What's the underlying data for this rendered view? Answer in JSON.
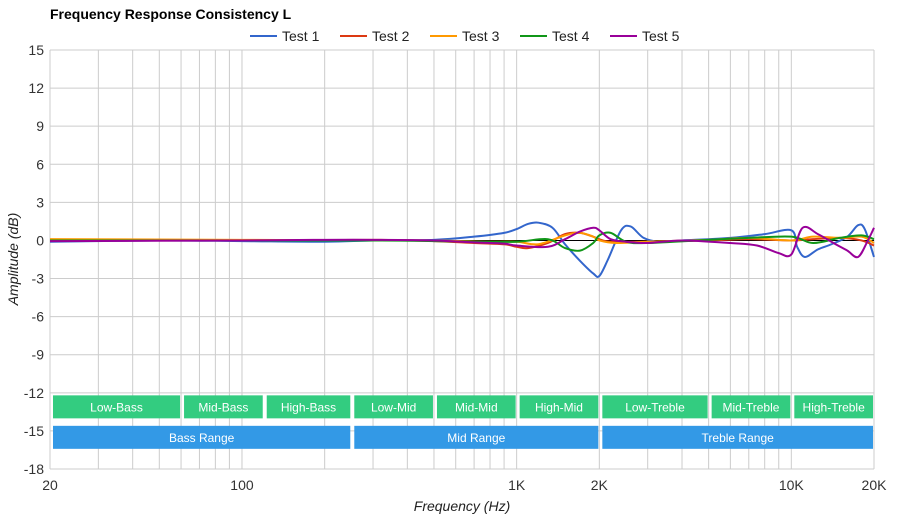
{
  "chart_data": {
    "type": "line",
    "title": "Frequency Response Consistency L",
    "xlabel": "Frequency (Hz)",
    "ylabel": "Amplitude (dB)",
    "x_scale": "log",
    "xlim": [
      20,
      20000
    ],
    "ylim": [
      -18,
      15
    ],
    "x_ticks": [
      {
        "value": 20,
        "label": "20"
      },
      {
        "value": 100,
        "label": "100"
      },
      {
        "value": 1000,
        "label": "1K"
      },
      {
        "value": 2000,
        "label": "2K"
      },
      {
        "value": 10000,
        "label": "10K"
      },
      {
        "value": 20000,
        "label": "20K"
      }
    ],
    "y_ticks": [
      {
        "value": 15,
        "label": "15"
      },
      {
        "value": 12,
        "label": "12"
      },
      {
        "value": 9,
        "label": "9"
      },
      {
        "value": 6,
        "label": "6"
      },
      {
        "value": 3,
        "label": "3"
      },
      {
        "value": 0,
        "label": "0"
      },
      {
        "value": -3,
        "label": "-3"
      },
      {
        "value": -6,
        "label": "-6"
      },
      {
        "value": -9,
        "label": "-9"
      },
      {
        "value": -12,
        "label": "-12"
      },
      {
        "value": -15,
        "label": "-15"
      },
      {
        "value": -18,
        "label": "-18"
      }
    ],
    "grid": true,
    "legend_position": "top-center",
    "series": [
      {
        "name": "Test 1",
        "color": "#3366cc",
        "points": [
          [
            20,
            -0.1
          ],
          [
            50,
            0
          ],
          [
            100,
            -0.05
          ],
          [
            200,
            -0.1
          ],
          [
            300,
            0
          ],
          [
            500,
            0.05
          ],
          [
            700,
            0.3
          ],
          [
            900,
            0.6
          ],
          [
            1000,
            0.9
          ],
          [
            1100,
            1.3
          ],
          [
            1200,
            1.4
          ],
          [
            1350,
            1.0
          ],
          [
            1500,
            -0.3
          ],
          [
            1700,
            -1.6
          ],
          [
            1900,
            -2.6
          ],
          [
            2000,
            -2.8
          ],
          [
            2150,
            -1.5
          ],
          [
            2400,
            0.8
          ],
          [
            2600,
            1.1
          ],
          [
            2900,
            0.2
          ],
          [
            3300,
            -0.1
          ],
          [
            4000,
            0
          ],
          [
            6000,
            0.2
          ],
          [
            8000,
            0.5
          ],
          [
            10000,
            0.8
          ],
          [
            10500,
            -0.5
          ],
          [
            11200,
            -1.3
          ],
          [
            12500,
            -0.7
          ],
          [
            14000,
            -0.3
          ],
          [
            16000,
            0.3
          ],
          [
            17500,
            1.2
          ],
          [
            18500,
            0.9
          ],
          [
            20000,
            -1.3
          ]
        ]
      },
      {
        "name": "Test 2",
        "color": "#dc3912",
        "points": [
          [
            20,
            0
          ],
          [
            100,
            0
          ],
          [
            300,
            0.05
          ],
          [
            500,
            -0.05
          ],
          [
            700,
            -0.2
          ],
          [
            900,
            -0.3
          ],
          [
            1000,
            -0.5
          ],
          [
            1100,
            -0.6
          ],
          [
            1300,
            -0.2
          ],
          [
            1500,
            0.5
          ],
          [
            1700,
            0.6
          ],
          [
            1900,
            0.3
          ],
          [
            2000,
            0.1
          ],
          [
            2200,
            -0.1
          ],
          [
            3000,
            -0.1
          ],
          [
            5000,
            0
          ],
          [
            7000,
            0.1
          ],
          [
            10000,
            0
          ],
          [
            12000,
            0.1
          ],
          [
            15000,
            0.2
          ],
          [
            18000,
            0
          ],
          [
            20000,
            -0.4
          ]
        ]
      },
      {
        "name": "Test 3",
        "color": "#ff9900",
        "points": [
          [
            20,
            0.1
          ],
          [
            100,
            0.05
          ],
          [
            300,
            0
          ],
          [
            500,
            0
          ],
          [
            800,
            -0.1
          ],
          [
            1000,
            -0.1
          ],
          [
            1200,
            -0.3
          ],
          [
            1500,
            0.4
          ],
          [
            1700,
            0.6
          ],
          [
            1900,
            0.3
          ],
          [
            2000,
            0
          ],
          [
            2300,
            -0.2
          ],
          [
            3000,
            -0.1
          ],
          [
            5000,
            0.05
          ],
          [
            7000,
            0.2
          ],
          [
            10000,
            0
          ],
          [
            12000,
            0.3
          ],
          [
            15000,
            0.2
          ],
          [
            18000,
            0.3
          ],
          [
            20000,
            -0.2
          ]
        ]
      },
      {
        "name": "Test 4",
        "color": "#109618",
        "points": [
          [
            20,
            0
          ],
          [
            100,
            0
          ],
          [
            300,
            0
          ],
          [
            500,
            -0.05
          ],
          [
            700,
            -0.1
          ],
          [
            1000,
            -0.1
          ],
          [
            1300,
            0.1
          ],
          [
            1500,
            -0.6
          ],
          [
            1700,
            -0.8
          ],
          [
            1900,
            -0.2
          ],
          [
            2000,
            0.4
          ],
          [
            2200,
            0.6
          ],
          [
            2500,
            -0.1
          ],
          [
            3000,
            -0.2
          ],
          [
            5000,
            0.05
          ],
          [
            7000,
            0.2
          ],
          [
            10000,
            0.3
          ],
          [
            12000,
            -0.2
          ],
          [
            15000,
            0.2
          ],
          [
            18000,
            0.4
          ],
          [
            20000,
            0.1
          ]
        ]
      },
      {
        "name": "Test 5",
        "color": "#990099",
        "points": [
          [
            20,
            -0.05
          ],
          [
            100,
            0
          ],
          [
            200,
            0.05
          ],
          [
            300,
            0.05
          ],
          [
            500,
            0
          ],
          [
            700,
            -0.15
          ],
          [
            900,
            -0.25
          ],
          [
            1000,
            -0.4
          ],
          [
            1300,
            -0.5
          ],
          [
            1500,
            0.1
          ],
          [
            1700,
            0.7
          ],
          [
            1900,
            1.0
          ],
          [
            2000,
            0.8
          ],
          [
            2200,
            0.1
          ],
          [
            2500,
            -0.1
          ],
          [
            3000,
            -0.2
          ],
          [
            4000,
            0
          ],
          [
            6000,
            -0.2
          ],
          [
            7500,
            -0.4
          ],
          [
            9000,
            -1.0
          ],
          [
            10000,
            -1.1
          ],
          [
            11000,
            1.0
          ],
          [
            12500,
            0.5
          ],
          [
            14500,
            -0.3
          ],
          [
            16000,
            -0.8
          ],
          [
            17500,
            -1.3
          ],
          [
            19000,
            0
          ],
          [
            20000,
            1.0
          ]
        ]
      }
    ],
    "bands": [
      {
        "label": "Low-Bass",
        "from": 20,
        "to": 60,
        "row": 0
      },
      {
        "label": "Mid-Bass",
        "from": 60,
        "to": 120,
        "row": 0
      },
      {
        "label": "High-Bass",
        "from": 120,
        "to": 250,
        "row": 0
      },
      {
        "label": "Low-Mid",
        "from": 250,
        "to": 500,
        "row": 0
      },
      {
        "label": "Mid-Mid",
        "from": 500,
        "to": 1000,
        "row": 0
      },
      {
        "label": "High-Mid",
        "from": 1000,
        "to": 2000,
        "row": 0
      },
      {
        "label": "Low-Treble",
        "from": 2000,
        "to": 5000,
        "row": 0
      },
      {
        "label": "Mid-Treble",
        "from": 5000,
        "to": 10000,
        "row": 0
      },
      {
        "label": "High-Treble",
        "from": 10000,
        "to": 20000,
        "row": 0
      },
      {
        "label": "Bass Range",
        "from": 20,
        "to": 250,
        "row": 1
      },
      {
        "label": "Mid Range",
        "from": 250,
        "to": 2000,
        "row": 1
      },
      {
        "label": "Treble Range",
        "from": 2000,
        "to": 20000,
        "row": 1
      }
    ],
    "colors": {
      "band_top": "#33cc80",
      "band_bottom": "#3399e6",
      "grid": "#cccccc",
      "zero_line": "#000000"
    }
  }
}
